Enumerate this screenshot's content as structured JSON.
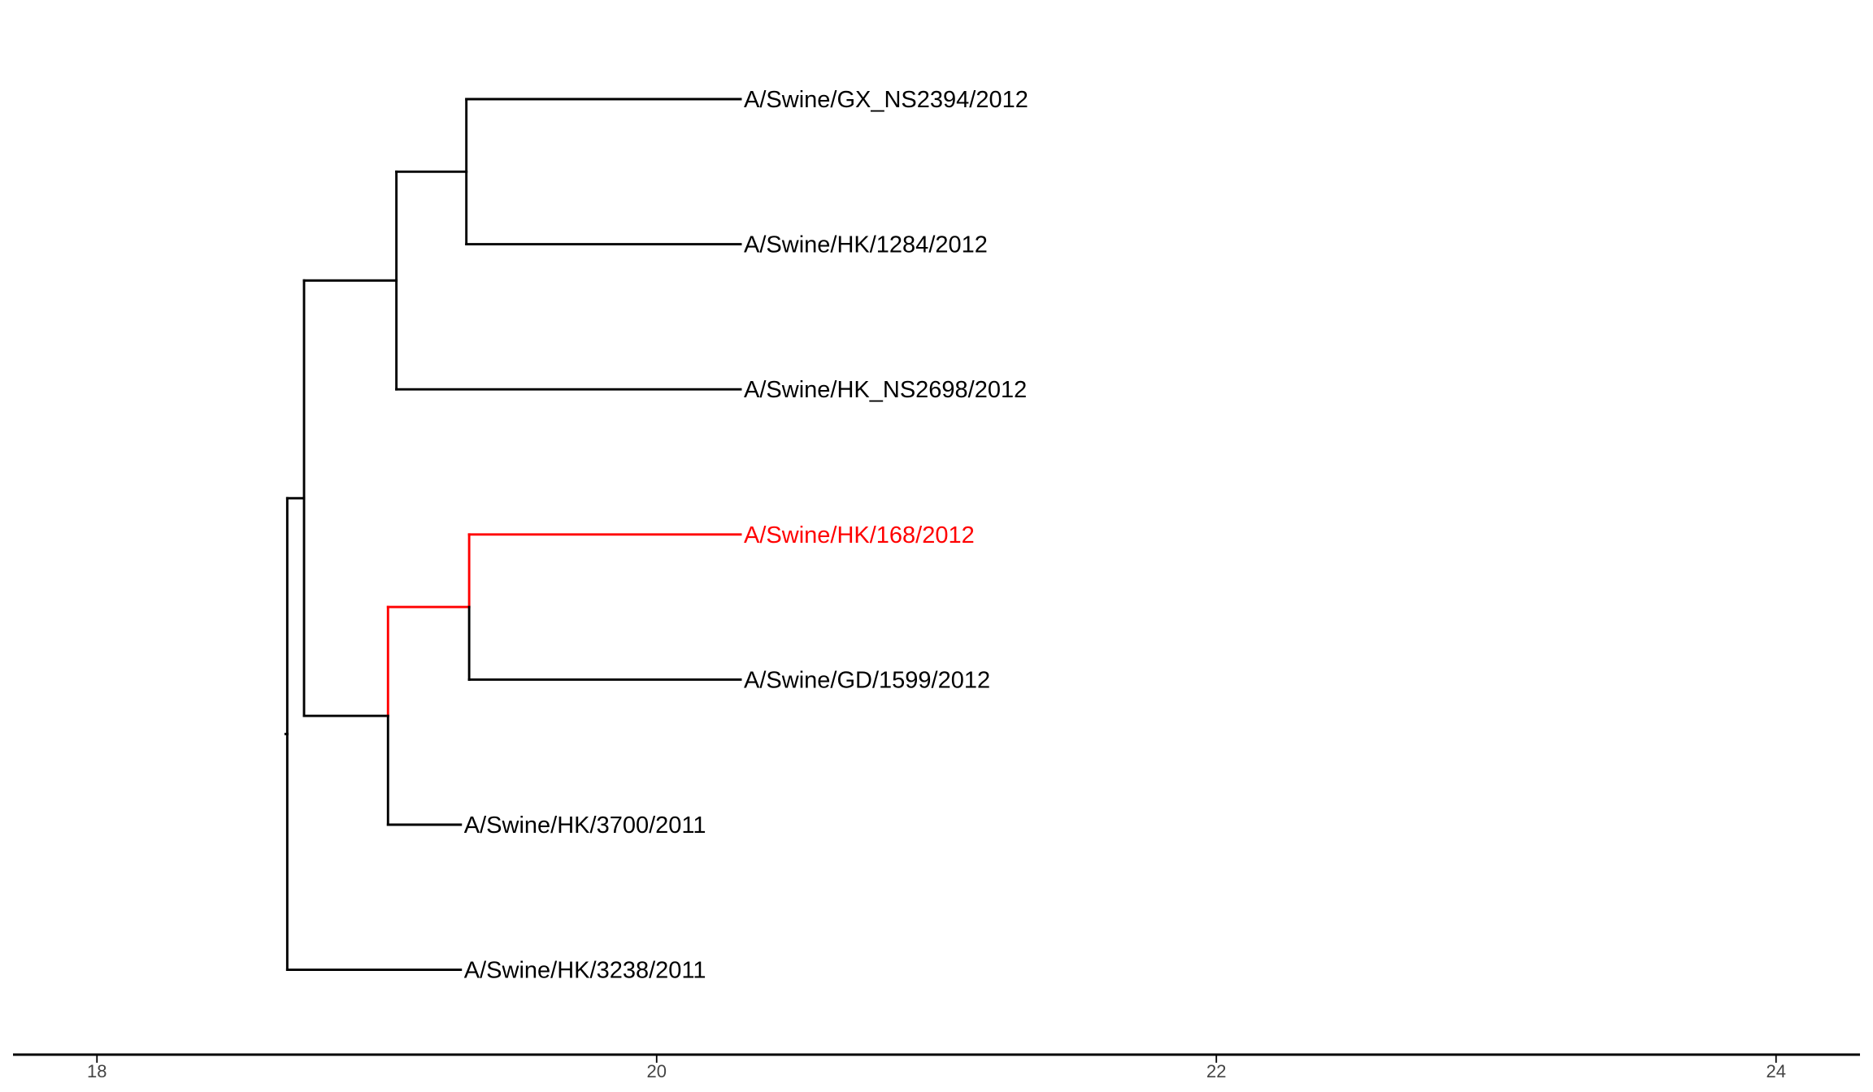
{
  "figure": {
    "type": "phylogenetic-tree",
    "tips": [
      {
        "id": "t1",
        "label": "A/Swine/GX_NS2394/2012",
        "highlight": false
      },
      {
        "id": "t2",
        "label": "A/Swine/HK/1284/2012",
        "highlight": false
      },
      {
        "id": "t3",
        "label": "A/Swine/HK_NS2698/2012",
        "highlight": false
      },
      {
        "id": "t4",
        "label": "A/Swine/HK/168/2012",
        "highlight": true
      },
      {
        "id": "t5",
        "label": "A/Swine/GD/1599/2012",
        "highlight": false
      },
      {
        "id": "t6",
        "label": "A/Swine/HK/3700/2011",
        "highlight": false
      },
      {
        "id": "t7",
        "label": "A/Swine/HK/3238/2011",
        "highlight": false
      }
    ],
    "tip_times": {
      "t1": 20.3,
      "t2": 20.3,
      "t3": 20.3,
      "t4": 20.3,
      "t5": 20.3,
      "t6": 19.3,
      "t7": 19.3
    },
    "nodes": [
      {
        "id": "root",
        "time": 18.68,
        "children": [
          "n1",
          "t7"
        ]
      },
      {
        "id": "n1",
        "time": 18.74,
        "children": [
          "n2",
          "n4"
        ]
      },
      {
        "id": "n2",
        "time": 19.07,
        "children": [
          "n3",
          "t3"
        ]
      },
      {
        "id": "n3",
        "time": 19.32,
        "children": [
          "t1",
          "t2"
        ]
      },
      {
        "id": "n4",
        "time": 19.04,
        "children": [
          "n5",
          "t6"
        ]
      },
      {
        "id": "n5",
        "time": 19.33,
        "children": [
          "t4",
          "t5"
        ]
      }
    ],
    "highlight_path": [
      "n4",
      "n5",
      "t4"
    ],
    "colors": {
      "default": "#000000",
      "highlight": "#ff0000",
      "tick_text": "#444444"
    },
    "axis": {
      "range": [
        17.7,
        24.3
      ],
      "ticks": [
        18,
        20,
        22,
        24
      ],
      "tick_labels": [
        "18",
        "20",
        "22",
        "24"
      ]
    }
  }
}
